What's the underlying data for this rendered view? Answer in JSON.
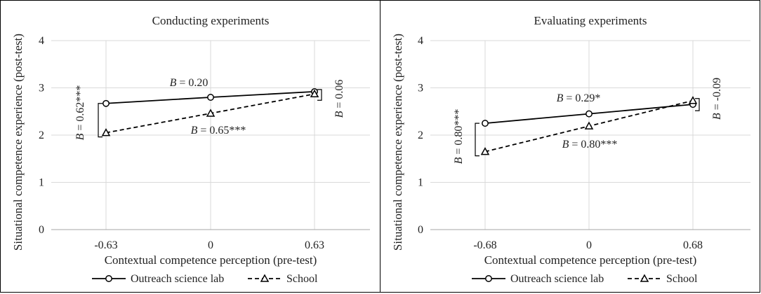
{
  "chart_data": [
    {
      "type": "line",
      "title": "Conducting experiments",
      "xlabel": "Contextual competence perception (pre-test)",
      "ylabel": "Situational competence experience (post-test)",
      "categories": [
        "-0.63",
        "0",
        "0.63"
      ],
      "ylim": [
        0,
        4
      ],
      "yticks": [
        "0",
        "1",
        "2",
        "3",
        "4"
      ],
      "grid": true,
      "legend_position": "bottom",
      "series": [
        {
          "name": "Outreach science lab",
          "style": "solid",
          "marker": "circle",
          "values": [
            2.67,
            2.8,
            2.92
          ]
        },
        {
          "name": "School",
          "style": "dashed",
          "marker": "triangle",
          "values": [
            2.05,
            2.46,
            2.87
          ]
        }
      ],
      "annotations": {
        "outreach_slope": {
          "italic": "B",
          "rest": " = 0.20"
        },
        "school_slope": {
          "italic": "B",
          "rest": " = 0.65***"
        },
        "low_diff": {
          "italic": "B",
          "rest": " = 0.62***"
        },
        "high_diff": {
          "italic": "B",
          "rest": " = 0.06"
        }
      }
    },
    {
      "type": "line",
      "title": "Evaluating experiments",
      "xlabel": "Contextual competence perception (pre-test)",
      "ylabel": "Situational competence experience (post-test)",
      "categories": [
        "-0.68",
        "0",
        "0.68"
      ],
      "ylim": [
        0,
        4
      ],
      "yticks": [
        "0",
        "1",
        "2",
        "3",
        "4"
      ],
      "grid": true,
      "legend_position": "bottom",
      "series": [
        {
          "name": "Outreach science lab",
          "style": "solid",
          "marker": "circle",
          "values": [
            2.25,
            2.45,
            2.65
          ]
        },
        {
          "name": "School",
          "style": "dashed",
          "marker": "triangle",
          "values": [
            1.65,
            2.19,
            2.73
          ]
        }
      ],
      "annotations": {
        "outreach_slope": {
          "italic": "B",
          "rest": " = 0.29*"
        },
        "school_slope": {
          "italic": "B",
          "rest": " = 0.80***"
        },
        "low_diff": {
          "italic": "B",
          "rest": " = 0.80***"
        },
        "high_diff": {
          "italic": "B",
          "rest": " = -0.09"
        }
      }
    }
  ]
}
